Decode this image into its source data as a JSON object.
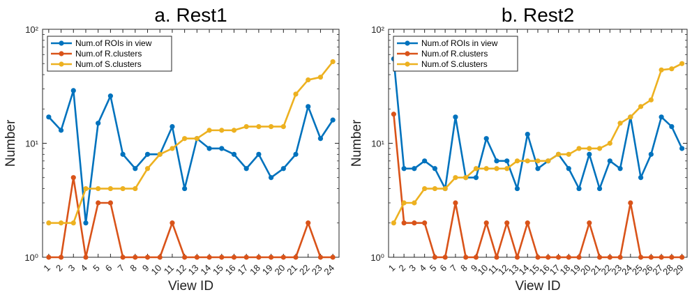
{
  "chart_data": [
    {
      "type": "line",
      "title": "a. Rest1",
      "xlabel": "View ID",
      "ylabel": "Number",
      "yscale": "log",
      "ylim": [
        1,
        100
      ],
      "yticks": [
        "10⁰",
        "10¹",
        "10²"
      ],
      "legend_position": "top-left",
      "grid": false,
      "x": [
        1,
        2,
        3,
        4,
        5,
        6,
        7,
        8,
        9,
        10,
        11,
        12,
        13,
        14,
        15,
        16,
        17,
        18,
        19,
        20,
        21,
        22,
        23,
        24
      ],
      "series": [
        {
          "name": "Num.of ROIs in view",
          "color": "#0072BD",
          "values": [
            17,
            13,
            29,
            2,
            15,
            26,
            8,
            6,
            8,
            8,
            14,
            4,
            11,
            9,
            9,
            8,
            6,
            8,
            5,
            6,
            8,
            21,
            11,
            16
          ]
        },
        {
          "name": "Num.of R.clusters",
          "color": "#D95319",
          "values": [
            1,
            1,
            5,
            1,
            3,
            3,
            1,
            1,
            1,
            1,
            2,
            1,
            1,
            1,
            1,
            1,
            1,
            1,
            1,
            1,
            1,
            2,
            1,
            1
          ]
        },
        {
          "name": "Num.of S.clusters",
          "color": "#EDB120",
          "values": [
            2,
            2,
            2,
            4,
            4,
            4,
            4,
            4,
            6,
            8,
            9,
            11,
            11,
            13,
            13,
            13,
            14,
            14,
            14,
            14,
            27,
            36,
            38,
            52
          ]
        }
      ]
    },
    {
      "type": "line",
      "title": "b. Rest2",
      "xlabel": "View ID",
      "ylabel": "Number",
      "yscale": "log",
      "ylim": [
        1,
        100
      ],
      "yticks": [
        "10⁰",
        "10¹",
        "10²"
      ],
      "legend_position": "top-left",
      "grid": false,
      "x": [
        1,
        2,
        3,
        4,
        5,
        6,
        7,
        8,
        9,
        10,
        11,
        12,
        13,
        14,
        15,
        16,
        17,
        18,
        19,
        20,
        21,
        22,
        23,
        24,
        25,
        26,
        27,
        28,
        29
      ],
      "series": [
        {
          "name": "Num.of ROIs in view",
          "color": "#0072BD",
          "values": [
            55,
            6,
            6,
            7,
            6,
            4,
            17,
            5,
            5,
            11,
            7,
            7,
            4,
            12,
            6,
            7,
            8,
            6,
            4,
            8,
            4,
            7,
            6,
            17,
            5,
            8,
            17,
            14,
            9
          ]
        },
        {
          "name": "Num.of R.clusters",
          "color": "#D95319",
          "values": [
            18,
            2,
            2,
            2,
            1,
            1,
            3,
            1,
            1,
            2,
            1,
            2,
            1,
            2,
            1,
            1,
            1,
            1,
            1,
            2,
            1,
            1,
            1,
            3,
            1,
            1,
            1,
            1,
            1
          ]
        },
        {
          "name": "Num.of S.clusters",
          "color": "#EDB120",
          "values": [
            2,
            3,
            3,
            4,
            4,
            4,
            5,
            5,
            6,
            6,
            6,
            6,
            7,
            7,
            7,
            7,
            8,
            8,
            9,
            9,
            9,
            10,
            15,
            17,
            21,
            24,
            44,
            45,
            50
          ]
        }
      ]
    }
  ]
}
